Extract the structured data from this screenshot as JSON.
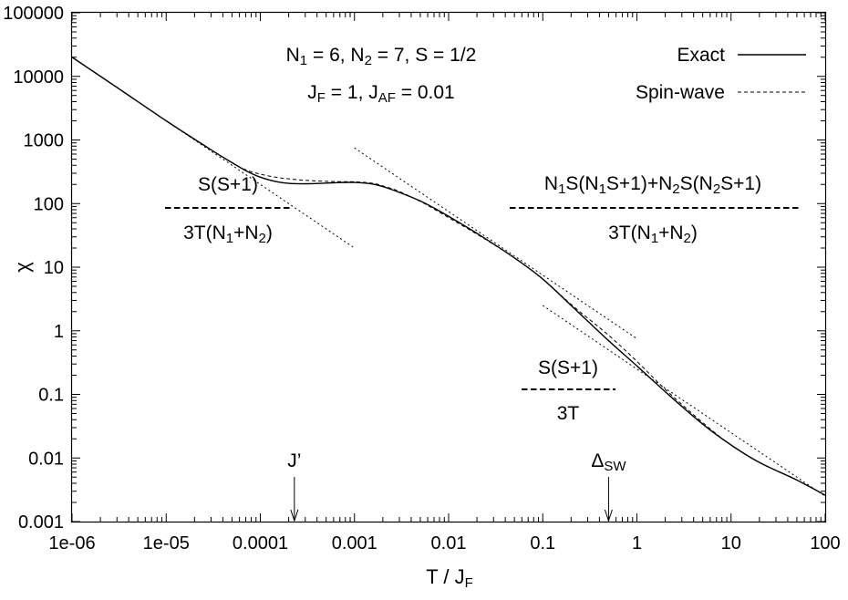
{
  "chart_data": {
    "type": "line",
    "xlabel": {
      "main": "T / J",
      "sub": "F"
    },
    "ylabel": "χ",
    "x_scale": "log",
    "y_scale": "log",
    "xlim": [
      1e-06,
      100
    ],
    "ylim": [
      0.001,
      100000
    ],
    "x_ticks": [
      {
        "value": 1e-06,
        "label": "1e-06"
      },
      {
        "value": 1e-05,
        "label": "1e-05"
      },
      {
        "value": 0.0001,
        "label": "0.0001"
      },
      {
        "value": 0.001,
        "label": "0.001"
      },
      {
        "value": 0.01,
        "label": "0.01"
      },
      {
        "value": 0.1,
        "label": "0.1"
      },
      {
        "value": 1,
        "label": "1"
      },
      {
        "value": 10,
        "label": "10"
      },
      {
        "value": 100,
        "label": "100"
      }
    ],
    "y_ticks": [
      {
        "value": 0.001,
        "label": "0.001"
      },
      {
        "value": 0.01,
        "label": "0.01"
      },
      {
        "value": 0.1,
        "label": "0.1"
      },
      {
        "value": 1,
        "label": "1"
      },
      {
        "value": 10,
        "label": "10"
      },
      {
        "value": 100,
        "label": "100"
      },
      {
        "value": 1000,
        "label": "1000"
      },
      {
        "value": 10000,
        "label": "10000"
      },
      {
        "value": 100000,
        "label": "100000"
      }
    ],
    "grid": false,
    "legend_position": "top-right",
    "series": [
      {
        "name": "Exact",
        "style": "solid",
        "x": [
          1e-06,
          3e-06,
          1e-05,
          3e-05,
          5e-05,
          7e-05,
          0.0001,
          0.00015,
          0.0002,
          0.0003,
          0.0005,
          0.0007,
          0.001,
          0.0015,
          0.002,
          0.003,
          0.005,
          0.007,
          0.01,
          0.02,
          0.05,
          0.1,
          0.2,
          0.5,
          1,
          2,
          5,
          10,
          20,
          50,
          100
        ],
        "y": [
          20000,
          6700,
          2000,
          700,
          440,
          330,
          260,
          220,
          208,
          205,
          210,
          214,
          215,
          205,
          185,
          150,
          110,
          85,
          63,
          34,
          14,
          6.5,
          2.5,
          0.7,
          0.28,
          0.11,
          0.034,
          0.016,
          0.0085,
          0.0045,
          0.0026
        ]
      },
      {
        "name": "Spin-wave",
        "style": "dashed",
        "x": [
          1e-06,
          3e-06,
          1e-05,
          3e-05,
          5e-05,
          7e-05,
          0.0001,
          0.00015,
          0.0002,
          0.0003,
          0.0005,
          0.0007,
          0.001,
          0.0015,
          0.002,
          0.003,
          0.005,
          0.007,
          0.01,
          0.02,
          0.05,
          0.1,
          0.2,
          0.5,
          1,
          2,
          5,
          10,
          20,
          50,
          100
        ],
        "y": [
          20000,
          6700,
          2000,
          700,
          440,
          340,
          290,
          258,
          245,
          232,
          224,
          221,
          220,
          210,
          190,
          155,
          108,
          82,
          60,
          33,
          14,
          6.5,
          2.6,
          0.85,
          0.33,
          0.12,
          0.036,
          0.016,
          0.0085,
          0.0045,
          0.0026
        ]
      }
    ],
    "asymptotes": [
      {
        "x": [
          1e-06,
          0.001
        ],
        "y": [
          20000,
          20
        ],
        "style": "dotted"
      },
      {
        "x": [
          0.001,
          1
        ],
        "y": [
          750,
          0.75
        ],
        "style": "dotted"
      },
      {
        "x": [
          0.1,
          100
        ],
        "y": [
          2.5,
          0.0025
        ],
        "style": "dotted"
      }
    ],
    "annotations": {
      "params_line1": {
        "parts": [
          [
            "N",
            ""
          ],
          [
            "1",
            "sub"
          ],
          [
            " = 6, N",
            ""
          ],
          [
            "2",
            "sub"
          ],
          [
            " = 7, S = 1/2",
            ""
          ]
        ]
      },
      "params_line2": {
        "parts": [
          [
            "J",
            ""
          ],
          [
            "F",
            "sub"
          ],
          [
            " = 1, J",
            ""
          ],
          [
            "AF",
            "sub"
          ],
          [
            " = 0.01",
            ""
          ]
        ]
      },
      "low_t_numerator": "S(S+1)",
      "low_t_dash": "-------------",
      "low_t_denominator": {
        "parts": [
          [
            "3T(N",
            ""
          ],
          [
            "1",
            "sub"
          ],
          [
            "+N",
            ""
          ],
          [
            "2",
            "sub"
          ],
          [
            ")",
            ""
          ]
        ]
      },
      "mid_t_numerator": {
        "parts": [
          [
            "N",
            ""
          ],
          [
            "1",
            "sub"
          ],
          [
            "S(N",
            ""
          ],
          [
            "1",
            "sub"
          ],
          [
            "S+1)+N",
            ""
          ],
          [
            "2",
            "sub"
          ],
          [
            "S(N",
            ""
          ],
          [
            "2",
            "sub"
          ],
          [
            "S+1)",
            ""
          ]
        ]
      },
      "mid_t_dash": "--------------------------------------------",
      "mid_t_denominator": {
        "parts": [
          [
            "3T(N",
            ""
          ],
          [
            "1",
            "sub"
          ],
          [
            "+N",
            ""
          ],
          [
            "2",
            "sub"
          ],
          [
            ")",
            ""
          ]
        ]
      },
      "high_t_numerator": "S(S+1)",
      "high_t_dash": "-------------",
      "high_t_denominator": "3T"
    },
    "markers": [
      {
        "label": {
          "parts": [
            [
              "J’",
              ""
            ]
          ]
        },
        "x": 0.00023
      },
      {
        "label": {
          "parts": [
            [
              "Δ",
              ""
            ],
            [
              "SW",
              "sub"
            ]
          ]
        },
        "x": 0.5
      }
    ]
  }
}
